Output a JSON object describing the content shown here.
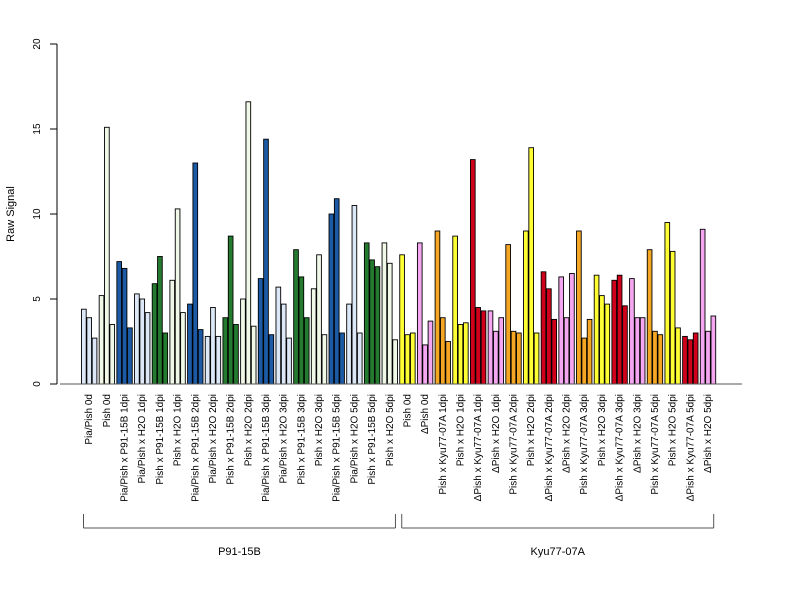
{
  "chart_data": {
    "type": "bar",
    "ylabel": "Raw Signal",
    "ylim": [
      0,
      20
    ],
    "yticks": [
      0,
      5,
      10,
      15,
      20
    ],
    "grid": false,
    "bars_per_group": 3,
    "categories": [
      "Pia/Pish 0d",
      "Pish 0d",
      "Pia/Pish x P91-15B 1dpi",
      "Pia/Pish x H2O 1dpi",
      "Pish x P91-15B 1dpi",
      "Pish x H2O 1dpi",
      "Pia/Pish x P91-15B 2dpi",
      "Pia/Pish x H2O 2dpi",
      "Pish x P91-15B 2dpi",
      "Pish x H2O 2dpi",
      "Pia/Pish x P91-15B 3dpi",
      "Pia/Pish x H2O 3dpi",
      "Pish x P91-15B 3dpi",
      "Pish x H2O 3dpi",
      "Pia/Pish x P91-15B 5dpi",
      "Pia/Pish x H2O 5dpi",
      "Pish x P91-15B 5dpi",
      "Pish x H2O 5dpi",
      "Pish 0d",
      "ΔPish 0d",
      "Pish x Kyu77-07A 1dpi",
      "Pish x H2O 1dpi",
      "ΔPish x Kyu77-07A 1dpi",
      "ΔPish x H2O 1dpi",
      "Pish x Kyu77-07A 2dpi",
      "Pish x H2O 2dpi",
      "ΔPish x Kyu77-07A 2dpi",
      "ΔPish x H2O 2dpi",
      "Pish x Kyu77-07A 3dpi",
      "Pish x H2O 3dpi",
      "ΔPish x Kyu77-07A 3dpi",
      "ΔPish x H2O 3dpi",
      "Pish x Kyu77-07A 5dpi",
      "Pish x H2O 5dpi",
      "ΔPish x Kyu77-07A 5dpi",
      "ΔPish x H2O 5dpi"
    ],
    "values": [
      [
        4.4,
        3.9,
        2.7
      ],
      [
        5.2,
        15.1,
        3.5
      ],
      [
        7.2,
        6.8,
        3.3
      ],
      [
        5.3,
        5.0,
        4.2
      ],
      [
        5.9,
        7.5,
        3.0
      ],
      [
        6.1,
        10.3,
        4.2
      ],
      [
        4.7,
        13.0,
        3.2
      ],
      [
        2.8,
        4.5,
        2.8
      ],
      [
        3.9,
        8.7,
        3.5
      ],
      [
        5.0,
        16.6,
        3.4
      ],
      [
        6.2,
        14.4,
        2.9
      ],
      [
        5.7,
        4.7,
        2.7
      ],
      [
        7.9,
        6.3,
        3.9
      ],
      [
        5.6,
        7.6,
        2.9
      ],
      [
        10.0,
        10.9,
        3.0
      ],
      [
        4.7,
        10.5,
        3.0
      ],
      [
        8.3,
        7.3,
        6.9
      ],
      [
        8.3,
        7.1,
        2.6
      ],
      [
        7.6,
        2.9,
        3.0
      ],
      [
        8.3,
        2.3,
        3.7
      ],
      [
        9.0,
        3.9,
        2.5
      ],
      [
        8.7,
        3.5,
        3.6
      ],
      [
        13.2,
        4.5,
        4.3
      ],
      [
        4.3,
        3.1,
        3.9
      ],
      [
        8.2,
        3.1,
        3.0
      ],
      [
        9.0,
        13.9,
        3.0
      ],
      [
        6.6,
        5.6,
        3.8
      ],
      [
        6.3,
        3.9,
        6.5
      ],
      [
        9.0,
        2.7,
        3.8
      ],
      [
        6.4,
        5.2,
        4.7
      ],
      [
        6.1,
        6.4,
        4.6
      ],
      [
        6.2,
        3.9,
        3.9
      ],
      [
        7.9,
        3.1,
        2.9
      ],
      [
        9.5,
        7.8,
        3.3
      ],
      [
        2.8,
        2.6,
        3.0
      ],
      [
        9.1,
        3.1,
        4.0
      ]
    ],
    "colors": [
      "#dce8f8",
      "#f0f8e8",
      "#1c5aa6",
      "#dce8f8",
      "#247a2e",
      "#f0f8e8",
      "#1c5aa6",
      "#dce8f8",
      "#247a2e",
      "#f0f8e8",
      "#1c5aa6",
      "#dce8f8",
      "#247a2e",
      "#f0f8e8",
      "#1c5aa6",
      "#dce8f8",
      "#247a2e",
      "#f0f8e8",
      "#ffff33",
      "#f4a6f0",
      "#f5a623",
      "#ffff33",
      "#d0021b",
      "#f4a6f0",
      "#f5a623",
      "#ffff33",
      "#d0021b",
      "#f4a6f0",
      "#f5a623",
      "#ffff33",
      "#d0021b",
      "#f4a6f0",
      "#f5a623",
      "#ffff33",
      "#d0021b",
      "#f4a6f0"
    ],
    "groups": [
      {
        "label": "P91-15B",
        "span": [
          0,
          17
        ]
      },
      {
        "label": "Kyu77-07A",
        "span": [
          18,
          35
        ]
      }
    ]
  }
}
